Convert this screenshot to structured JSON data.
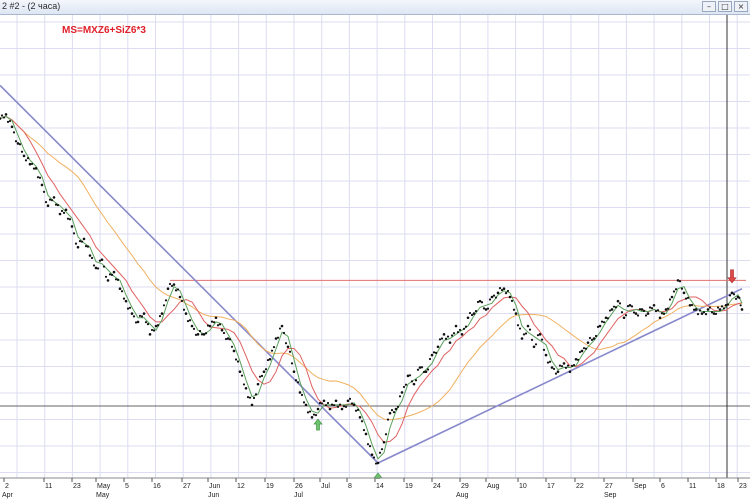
{
  "window": {
    "title": "2 #2 - (2 часа)",
    "minimize_glyph": "–",
    "maximize_glyph": "□",
    "close_glyph": "×"
  },
  "colors": {
    "background": "#ffffff",
    "grid": "#dcdcf2",
    "price": "#111111",
    "ma_fast": "#5aa05a",
    "ma_medium": "#e06060",
    "ma_slow": "#f0b060",
    "trendline": "#8888cc",
    "resistance": "#e07070",
    "annotation": "#e0202a",
    "arrow_up": "#6cc46c",
    "arrow_down": "#e04848"
  },
  "chart_data": {
    "type": "line",
    "annotation": "MS=MXZ6+SiZ6*3",
    "x_axis": {
      "ticks": [
        "2",
        "11",
        "23",
        "May",
        "5",
        "16",
        "27",
        "Jun",
        "12",
        "19",
        "26",
        "Jul",
        "8",
        "14",
        "19",
        "24",
        "29",
        "Aug",
        "10",
        "17",
        "22",
        "27",
        "Sep",
        "6",
        "11",
        "18",
        "23"
      ],
      "months": [
        "Apr",
        "May",
        "Jun",
        "Jul",
        "Aug",
        "Sep"
      ]
    },
    "series": [
      {
        "type": "dots",
        "points": [
          [
            0,
            0.83
          ],
          [
            6,
            0.84
          ],
          [
            12,
            0.81
          ],
          [
            18,
            0.77
          ],
          [
            24,
            0.74
          ],
          [
            30,
            0.72
          ],
          [
            36,
            0.71
          ],
          [
            42,
            0.67
          ],
          [
            48,
            0.62
          ],
          [
            54,
            0.64
          ],
          [
            60,
            0.6
          ],
          [
            66,
            0.61
          ],
          [
            72,
            0.57
          ],
          [
            78,
            0.52
          ],
          [
            84,
            0.54
          ],
          [
            90,
            0.5
          ],
          [
            96,
            0.47
          ],
          [
            102,
            0.49
          ],
          [
            108,
            0.44
          ],
          [
            114,
            0.46
          ],
          [
            120,
            0.42
          ],
          [
            126,
            0.39
          ],
          [
            132,
            0.36
          ],
          [
            138,
            0.34
          ],
          [
            144,
            0.36
          ],
          [
            150,
            0.31
          ],
          [
            156,
            0.33
          ],
          [
            162,
            0.36
          ],
          [
            168,
            0.42
          ],
          [
            174,
            0.43
          ],
          [
            180,
            0.4
          ],
          [
            186,
            0.36
          ],
          [
            192,
            0.33
          ],
          [
            198,
            0.31
          ],
          [
            204,
            0.31
          ],
          [
            210,
            0.33
          ],
          [
            216,
            0.35
          ],
          [
            222,
            0.32
          ],
          [
            228,
            0.3
          ],
          [
            234,
            0.27
          ],
          [
            240,
            0.22
          ],
          [
            246,
            0.18
          ],
          [
            252,
            0.14
          ],
          [
            258,
            0.19
          ],
          [
            264,
            0.22
          ],
          [
            270,
            0.25
          ],
          [
            276,
            0.3
          ],
          [
            282,
            0.33
          ],
          [
            288,
            0.28
          ],
          [
            294,
            0.22
          ],
          [
            300,
            0.17
          ],
          [
            306,
            0.14
          ],
          [
            312,
            0.11
          ],
          [
            318,
            0.13
          ],
          [
            324,
            0.15
          ],
          [
            330,
            0.13
          ],
          [
            336,
            0.15
          ],
          [
            342,
            0.13
          ],
          [
            348,
            0.15
          ],
          [
            354,
            0.14
          ],
          [
            360,
            0.11
          ],
          [
            366,
            0.07
          ],
          [
            372,
            0.02
          ],
          [
            378,
            0.0
          ],
          [
            384,
            0.05
          ],
          [
            390,
            0.12
          ],
          [
            396,
            0.13
          ],
          [
            402,
            0.17
          ],
          [
            408,
            0.21
          ],
          [
            414,
            0.19
          ],
          [
            420,
            0.23
          ],
          [
            426,
            0.22
          ],
          [
            432,
            0.26
          ],
          [
            438,
            0.28
          ],
          [
            444,
            0.31
          ],
          [
            450,
            0.29
          ],
          [
            456,
            0.33
          ],
          [
            462,
            0.31
          ],
          [
            468,
            0.35
          ],
          [
            474,
            0.36
          ],
          [
            480,
            0.39
          ],
          [
            486,
            0.37
          ],
          [
            492,
            0.4
          ],
          [
            498,
            0.41
          ],
          [
            504,
            0.42
          ],
          [
            510,
            0.4
          ],
          [
            516,
            0.36
          ],
          [
            522,
            0.3
          ],
          [
            528,
            0.33
          ],
          [
            534,
            0.28
          ],
          [
            540,
            0.31
          ],
          [
            546,
            0.26
          ],
          [
            552,
            0.23
          ],
          [
            558,
            0.22
          ],
          [
            564,
            0.24
          ],
          [
            570,
            0.22
          ],
          [
            576,
            0.25
          ],
          [
            582,
            0.27
          ],
          [
            588,
            0.29
          ],
          [
            594,
            0.3
          ],
          [
            600,
            0.33
          ],
          [
            606,
            0.35
          ],
          [
            612,
            0.37
          ],
          [
            618,
            0.39
          ],
          [
            624,
            0.35
          ],
          [
            630,
            0.38
          ],
          [
            636,
            0.36
          ],
          [
            642,
            0.37
          ],
          [
            648,
            0.36
          ],
          [
            654,
            0.38
          ],
          [
            660,
            0.35
          ],
          [
            666,
            0.37
          ],
          [
            672,
            0.4
          ],
          [
            678,
            0.44
          ],
          [
            684,
            0.41
          ],
          [
            690,
            0.38
          ],
          [
            696,
            0.37
          ],
          [
            702,
            0.36
          ],
          [
            708,
            0.37
          ],
          [
            714,
            0.36
          ],
          [
            720,
            0.37
          ],
          [
            726,
            0.38
          ],
          [
            732,
            0.41
          ],
          [
            738,
            0.4
          ],
          [
            742,
            0.37
          ]
        ]
      }
    ],
    "resistance_level": 0.44,
    "trendlines": [
      [
        [
          0,
          0.91
        ],
        [
          378,
          0.0
        ]
      ],
      [
        [
          378,
          0.0
        ],
        [
          742,
          0.42
        ]
      ]
    ],
    "signals": [
      {
        "type": "up",
        "x": 318,
        "y": 0.13
      },
      {
        "type": "up",
        "x": 378,
        "y": 0.0
      },
      {
        "type": "down",
        "x": 732,
        "y": 0.41
      }
    ]
  }
}
